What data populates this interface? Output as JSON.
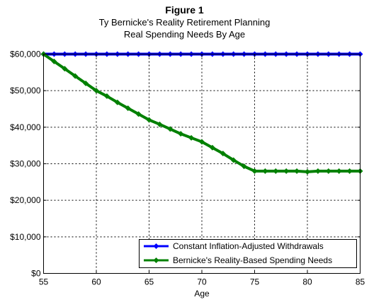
{
  "chart_data": {
    "type": "line",
    "title": "Figure 1",
    "subtitle_line1": "Ty Bernicke's Reality Retirement Planning",
    "subtitle_line2": "Real Spending Needs By Age",
    "xlabel": "Age",
    "ylabel": "",
    "xlim": [
      55,
      85
    ],
    "ylim": [
      0,
      60000
    ],
    "x_ticks": [
      55,
      60,
      65,
      70,
      75,
      80,
      85
    ],
    "x_tick_labels": [
      "55",
      "60",
      "65",
      "70",
      "75",
      "80",
      "85"
    ],
    "y_ticks": [
      0,
      10000,
      20000,
      30000,
      40000,
      50000,
      60000
    ],
    "y_tick_labels": [
      "$0",
      "$10,000",
      "$20,000",
      "$30,000",
      "$40,000",
      "$50,000",
      "$60,000"
    ],
    "grid": true,
    "legend_position": "bottom-right",
    "x": [
      55,
      56,
      57,
      58,
      59,
      60,
      61,
      62,
      63,
      64,
      65,
      66,
      67,
      68,
      69,
      70,
      71,
      72,
      73,
      74,
      75,
      76,
      77,
      78,
      79,
      80,
      81,
      82,
      83,
      84,
      85
    ],
    "series": [
      {
        "name": "Constant Inflation-Adjusted Withdrawals",
        "color": "#0000ff",
        "values": [
          60000,
          60000,
          60000,
          60000,
          60000,
          60000,
          60000,
          60000,
          60000,
          60000,
          60000,
          60000,
          60000,
          60000,
          60000,
          60000,
          60000,
          60000,
          60000,
          60000,
          60000,
          60000,
          60000,
          60000,
          60000,
          60000,
          60000,
          60000,
          60000,
          60000,
          60000
        ]
      },
      {
        "name": "Bernicke's Reality-Based Spending Needs",
        "color": "#008000",
        "values": [
          60000,
          58000,
          56000,
          54000,
          52000,
          50000,
          48500,
          46800,
          45200,
          43600,
          42000,
          40800,
          39500,
          38200,
          37100,
          36000,
          34400,
          32800,
          31000,
          29300,
          28000,
          28000,
          28000,
          28000,
          28000,
          27800,
          28000,
          28000,
          28000,
          28000,
          28000
        ]
      }
    ]
  }
}
